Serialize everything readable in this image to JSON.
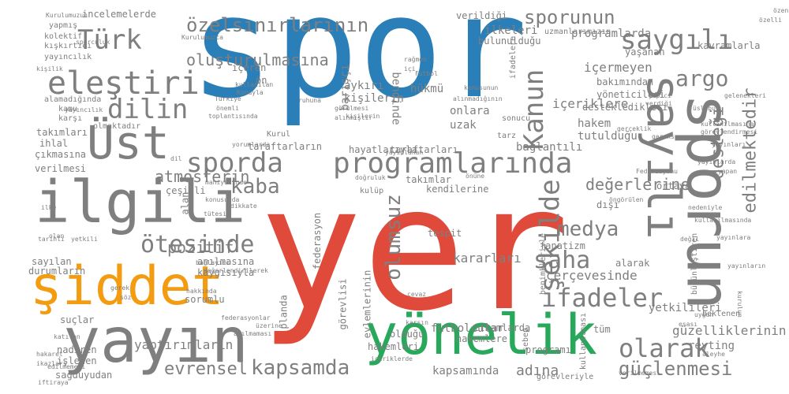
{
  "palette": {
    "gray": "#7f7f7f",
    "blue": "#2a7fb8",
    "red": "#e04a3a",
    "orange": "#f39c12",
    "green": "#27a85a"
  },
  "words": [
    {
      "text": "spor",
      "color": "blue"
    },
    {
      "text": "yer",
      "color": "red"
    },
    {
      "text": "şiddet",
      "color": "orange"
    },
    {
      "text": "yönelik",
      "color": "green"
    },
    {
      "text": "sporun"
    },
    {
      "text": "yayın"
    },
    {
      "text": "Üst"
    },
    {
      "text": "ilgili"
    },
    {
      "text": "eleştiri"
    },
    {
      "text": "dilin"
    },
    {
      "text": "Türk"
    },
    {
      "text": "özelsınırlarının"
    },
    {
      "text": "sporunun"
    },
    {
      "text": "saygılı"
    },
    {
      "text": "sayılı"
    },
    {
      "text": "argo"
    },
    {
      "text": "programlarında"
    },
    {
      "text": "sporda"
    },
    {
      "text": "kaba"
    },
    {
      "text": "Kanun"
    },
    {
      "text": "şekilde"
    },
    {
      "text": "olumsuz"
    },
    {
      "text": "desteği"
    },
    {
      "text": "edilmektedir"
    },
    {
      "text": "ötesinde"
    },
    {
      "text": "saha"
    },
    {
      "text": "medya"
    },
    {
      "text": "ifadeler"
    },
    {
      "text": "olarak"
    },
    {
      "text": "kapsamda"
    },
    {
      "text": "evrensel"
    },
    {
      "text": "yaptırımların"
    },
    {
      "text": "güçlenmesi"
    },
    {
      "text": "atmosferin"
    },
    {
      "text": "pozitif"
    },
    {
      "text": "oluşturulmasına"
    },
    {
      "text": "değerlerine"
    },
    {
      "text": "içermeyen"
    },
    {
      "text": "programlarda"
    },
    {
      "text": "kararları"
    },
    {
      "text": "futbolcular"
    },
    {
      "text": "kapsamında"
    },
    {
      "text": "adına"
    },
    {
      "text": "çerçevesinde"
    },
    {
      "text": "güzelliklerinin"
    },
    {
      "text": "yetkilileri"
    },
    {
      "text": "reyting"
    },
    {
      "text": "takımları"
    },
    {
      "text": "ihlal"
    },
    {
      "text": "çıkmasına"
    },
    {
      "text": "verilmesi"
    },
    {
      "text": "çeşitli"
    },
    {
      "text": "anılmasına"
    },
    {
      "text": "sayılan"
    },
    {
      "text": "durumların"
    },
    {
      "text": "suçlar"
    },
    {
      "text": "nadiren"
    },
    {
      "text": "işlenen"
    },
    {
      "text": "sağduyudan"
    },
    {
      "text": "incelemelerde"
    },
    {
      "text": "yapmış"
    },
    {
      "text": "kolektif"
    },
    {
      "text": "kışkırtıcı"
    },
    {
      "text": "yayıncılık"
    },
    {
      "text": "alamadığında"
    },
    {
      "text": "kamu"
    },
    {
      "text": "karşı"
    },
    {
      "text": "olmaktadır"
    },
    {
      "text": "aykırı"
    },
    {
      "text": "kişilerin"
    },
    {
      "text": "barışçı"
    },
    {
      "text": "hükmü"
    },
    {
      "text": "bendinde"
    },
    {
      "text": "onlara"
    },
    {
      "text": "uzak"
    },
    {
      "text": "hakem"
    },
    {
      "text": "tutulduğu"
    },
    {
      "text": "bağlantılı"
    },
    {
      "text": "taraftarların"
    },
    {
      "text": "taraftarları"
    },
    {
      "text": "hayatlarıyla"
    },
    {
      "text": "takımlar"
    },
    {
      "text": "kendilerine"
    },
    {
      "text": "içeriklere"
    },
    {
      "text": "destekledikleri"
    },
    {
      "text": "yöneticileri"
    },
    {
      "text": "bakımından"
    },
    {
      "text": "yaşanan"
    },
    {
      "text": "kavramlarla"
    },
    {
      "text": "ilkeleri"
    },
    {
      "text": "bulunulduğu"
    },
    {
      "text": "uzmanlarımızın"
    },
    {
      "text": "verildiği"
    },
    {
      "text": "içeren"
    },
    {
      "text": "ön"
    },
    {
      "text": "kaygısıyla"
    },
    {
      "text": "tespit"
    },
    {
      "text": "fanatizm"
    },
    {
      "text": "alarak"
    },
    {
      "text": "ortaya"
    },
    {
      "text": "dışı"
    },
    {
      "text": "ithamlarda"
    },
    {
      "text": "hakemlere"
    },
    {
      "text": "hakemleri"
    },
    {
      "text": "olduğu"
    },
    {
      "text": "tüm"
    },
    {
      "text": "programı"
    },
    {
      "text": "görevleriyle"
    },
    {
      "text": "beklenen"
    },
    {
      "text": "sorumlu"
    },
    {
      "text": "kulüp"
    },
    {
      "text": "Kurul"
    },
    {
      "text": "tarz"
    },
    {
      "text": "sonucu"
    },
    {
      "text": "federasyon"
    },
    {
      "text": "planda"
    },
    {
      "text": "alan"
    },
    {
      "text": "eylemlerinin"
    },
    {
      "text": "görevlisi"
    },
    {
      "text": "sebep"
    },
    {
      "text": "kullanılması"
    },
    {
      "text": "benimkleriyle"
    },
    {
      "text": "bütünleştiren"
    },
    {
      "text": "ifadelere"
    },
    {
      "text": "Kurulumuzun"
    },
    {
      "text": "Kurulumuzca"
    },
    {
      "text": "Futbol"
    },
    {
      "text": "Federasyonu"
    },
    {
      "text": "iftiraya"
    },
    {
      "text": "hakaret"
    },
    {
      "text": "ikazları"
    },
    {
      "text": "içi"
    },
    {
      "text": "görülmesi"
    },
    {
      "text": "alınmıştır"
    },
    {
      "text": "gerekse"
    },
    {
      "text": "özeni"
    },
    {
      "text": "dil"
    },
    {
      "text": "tarihli"
    },
    {
      "text": "ilke"
    },
    {
      "text": "tütesi"
    },
    {
      "text": "dikkate"
    },
    {
      "text": "konusunda"
    },
    {
      "text": "gelenekleri"
    },
    {
      "text": "yayınlara"
    },
    {
      "text": "yayınları"
    },
    {
      "text": "ruhuna"
    },
    {
      "text": "konusunun"
    },
    {
      "text": "Türkiye"
    },
    {
      "text": "önemli"
    },
    {
      "text": "toplantısında"
    },
    {
      "text": "yayıncılık"
    },
    {
      "text": "kullanılan"
    },
    {
      "text": "Konuyla"
    },
    {
      "text": "gerçeklik"
    },
    {
      "text": "verdiği"
    },
    {
      "text": "yapıcı"
    },
    {
      "text": "kullanılmasına"
    },
    {
      "text": "görevlendirmesi"
    },
    {
      "text": "özelli"
    },
    {
      "text": "yayınlarda"
    },
    {
      "text": "yapan"
    },
    {
      "text": "öngörülen"
    },
    {
      "text": "nedeniyle"
    },
    {
      "text": "uygun"
    },
    {
      "text": "esası"
    },
    {
      "text": "yayınların"
    },
    {
      "text": "kurulun"
    },
    {
      "text": "edilmemesi"
    },
    {
      "text": "verilmemesi"
    },
    {
      "text": "aşılmaması"
    },
    {
      "text": "üzerine"
    },
    {
      "text": "federasyonlar"
    },
    {
      "text": "hakkında"
    },
    {
      "text": "bağlayıcı"
    },
    {
      "text": "değerlendirilerek"
    },
    {
      "text": "gerek"
    },
    {
      "text": "olan"
    },
    {
      "text": "katılan"
    },
    {
      "text": "söz"
    },
    {
      "text": "yetkili"
    },
    {
      "text": "alınmadığının"
    },
    {
      "text": "kişilik"
    },
    {
      "text": "yayınlanan"
    },
    {
      "text": "yorumlarda"
    },
    {
      "text": "önüne"
    },
    {
      "text": "doğruluk"
    },
    {
      "text": "mahiyetinde"
    },
    {
      "text": "rağmen"
    },
    {
      "text": "kişilerin"
    },
    {
      "text": "kullanılmasında"
    },
    {
      "text": "sporculuk"
    },
    {
      "text": "üslubu"
    },
    {
      "text": "içeriklerde"
    },
    {
      "text": "karşın"
    },
    {
      "text": "cevaz"
    },
    {
      "text": "aleyhe"
    },
    {
      "text": "değil"
    }
  ]
}
